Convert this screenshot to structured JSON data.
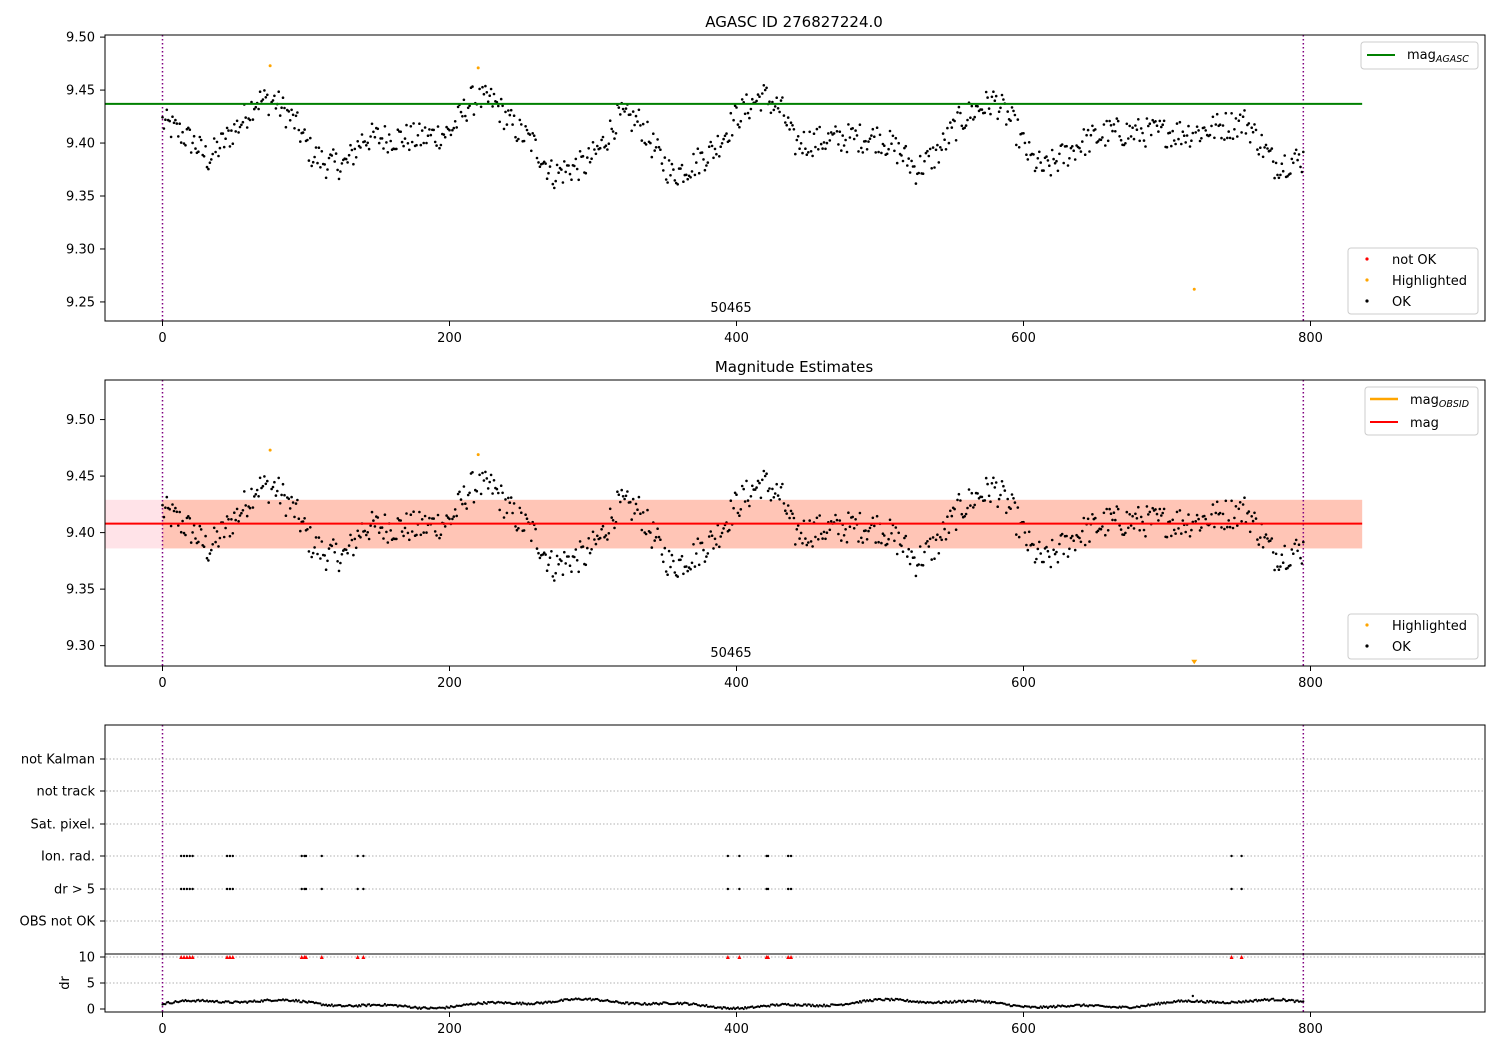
{
  "colors": {
    "ok": "#000000",
    "not_ok": "#ff0000",
    "highlighted": "#ffa500",
    "mag_agasc": "#008000",
    "mag_obsid": "#ffa500",
    "mag": "#ff0000",
    "band_outer": "#ffc0cb",
    "band_inner": "#ffa07a",
    "obs_boundary": "#800080"
  },
  "chart_data": [
    {
      "type": "scatter",
      "title": "AGASC ID 276827224.0",
      "obsid_label": "50465",
      "xlim": [
        -40,
        920
      ],
      "ylim": [
        9.232,
        9.502
      ],
      "xticks": [
        "0",
        "200",
        "400",
        "600",
        "800"
      ],
      "yticks": [
        "9.25",
        "9.30",
        "9.35",
        "9.40",
        "9.45",
        "9.50"
      ],
      "obs_boundaries": [
        0,
        795
      ],
      "lines": [
        {
          "name": "mag_AGASC",
          "label_main": "mag",
          "label_sub": "AGASC",
          "y": 9.437,
          "x_range": [
            -40,
            836
          ]
        }
      ],
      "series": [
        {
          "name": "not OK",
          "points": []
        },
        {
          "name": "Highlighted",
          "points": [
            [
              75,
              9.473
            ],
            [
              220,
              9.471
            ],
            [
              719,
              9.262
            ]
          ]
        },
        {
          "name": "OK",
          "description": "approx. 795 samples, magnitude mostly within 9.36-9.46"
        }
      ],
      "legend_lines_position": "upper right",
      "legend_points_position": "lower right"
    },
    {
      "type": "scatter",
      "title": "Magnitude Estimates",
      "obsid_label": "50465",
      "xlim": [
        -40,
        920
      ],
      "ylim": [
        9.282,
        9.535
      ],
      "xticks": [
        "0",
        "200",
        "400",
        "600",
        "800"
      ],
      "yticks": [
        "9.30",
        "9.35",
        "9.40",
        "9.45",
        "9.50"
      ],
      "obs_boundaries": [
        0,
        795
      ],
      "lines": [
        {
          "name": "mag_OBSID",
          "label_main": "mag",
          "label_sub": "OBSID",
          "y": 9.408,
          "x_range": [
            -40,
            836
          ]
        },
        {
          "name": "mag",
          "label_main": "mag",
          "label_sub": "",
          "y": 9.408,
          "x_range": [
            -40,
            836
          ]
        }
      ],
      "bands": [
        {
          "ymin": 9.386,
          "ymax": 9.429,
          "x_range": [
            -40,
            836
          ]
        },
        {
          "ymin": 9.386,
          "ymax": 9.429,
          "x_range": [
            0,
            836
          ]
        }
      ],
      "series": [
        {
          "name": "Highlighted",
          "points": [
            [
              75,
              9.473
            ],
            [
              220,
              9.469
            ],
            [
              719,
              9.284
            ]
          ]
        },
        {
          "name": "OK",
          "description": "same samples as the panel above"
        }
      ],
      "legend_lines_position": "upper right",
      "legend_points_position": "lower right"
    },
    {
      "type": "scatter",
      "title": "",
      "xlim": [
        -40,
        920
      ],
      "xticks": [
        "0",
        "200",
        "400",
        "600",
        "800"
      ],
      "flag_rows": [
        "not Kalman",
        "not track",
        "Sat. pixel.",
        "Ion. rad.",
        "dr > 5",
        "OBS not OK"
      ],
      "flagged_times": {
        "Ion. rad.": [
          13,
          15,
          17,
          19,
          21,
          45,
          47,
          49,
          97,
          99,
          100,
          111,
          136,
          140,
          394,
          402,
          421,
          422,
          436,
          438,
          745,
          752
        ],
        "dr > 5": [
          13,
          15,
          17,
          19,
          21,
          45,
          47,
          49,
          97,
          99,
          100,
          111,
          136,
          140,
          394,
          402,
          421,
          422,
          436,
          438,
          745,
          752
        ],
        "not Kalman": [],
        "not track": [],
        "Sat. pixel.": [],
        "OBS not OK": []
      },
      "obs_boundaries": [
        0,
        795
      ]
    },
    {
      "type": "scatter",
      "title": "",
      "ylabel": "dr",
      "xlim": [
        -40,
        920
      ],
      "ylim": [
        -0.5,
        10.5
      ],
      "xticks": [
        "0",
        "200",
        "400",
        "600",
        "800"
      ],
      "yticks": [
        "0",
        "5",
        "10"
      ],
      "clipped_at_10": [
        13,
        15,
        17,
        19,
        21,
        45,
        47,
        49,
        97,
        99,
        100,
        111,
        136,
        140,
        394,
        402,
        421,
        422,
        436,
        438,
        745,
        752
      ],
      "obs_boundaries": [
        0,
        795
      ]
    }
  ]
}
